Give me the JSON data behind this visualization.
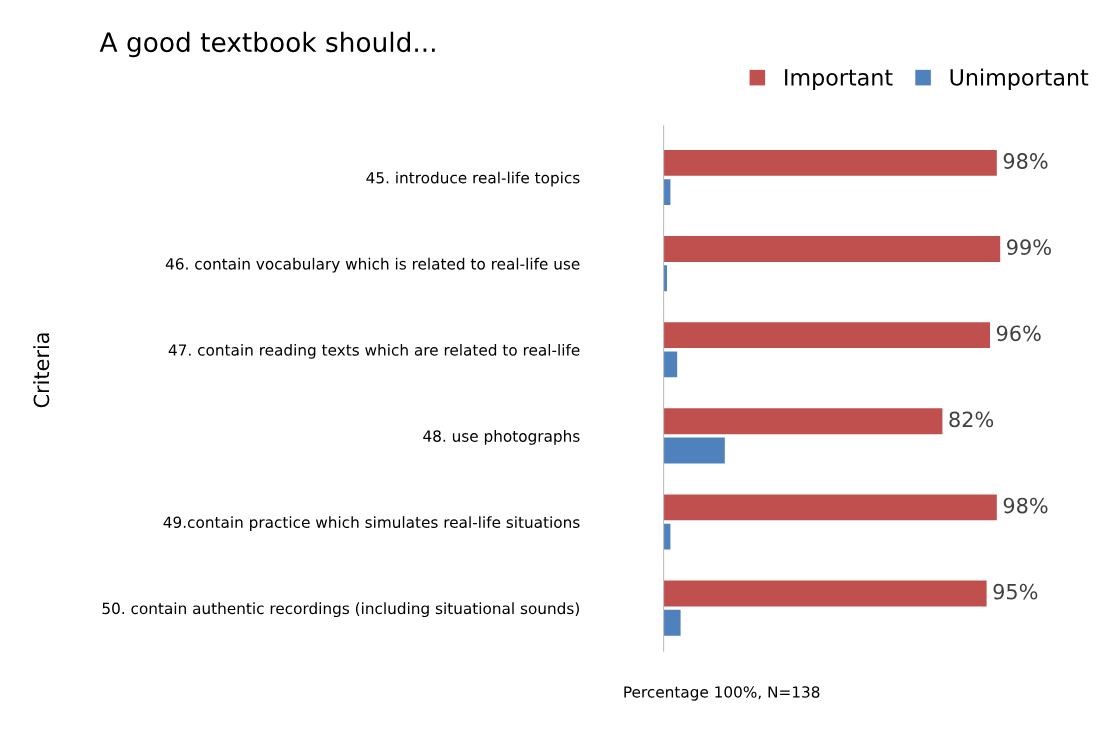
{
  "chart_data": {
    "type": "bar",
    "orientation": "horizontal",
    "title": "A good textbook should...",
    "ylabel": "Criteria",
    "xlabel": "Percentage 100%, N=138",
    "categories": [
      "45. introduce real-life topics",
      "46. contain vocabulary which is related to real-life use",
      "47. contain reading texts which are related to real-life",
      "48. use photographs",
      "49.contain practice which simulates real-life situations",
      "50. contain authentic recordings (including situational sounds)"
    ],
    "series": [
      {
        "name": "Important",
        "color": "#c0504d",
        "values": [
          98,
          99,
          96,
          82,
          98,
          95
        ],
        "value_labels": [
          "98%",
          "99%",
          "96%",
          "82%",
          "98%",
          "95%"
        ]
      },
      {
        "name": "Unimportant",
        "color": "#4f81bd",
        "values": [
          2,
          1,
          4,
          18,
          2,
          5
        ]
      }
    ],
    "legend": "top right",
    "grid": false
  }
}
